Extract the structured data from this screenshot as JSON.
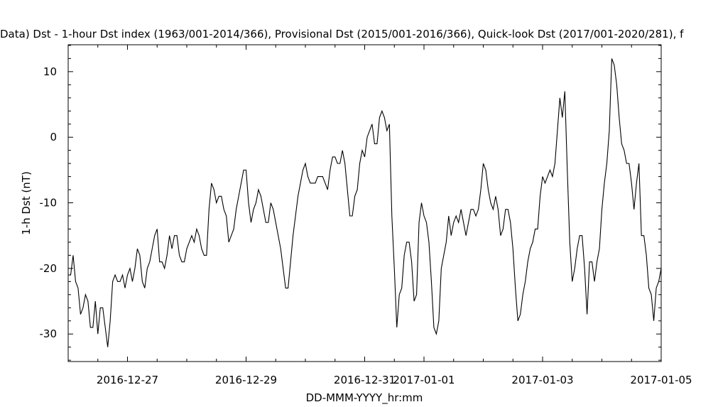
{
  "chart_data": {
    "type": "line",
    "title": "Data)  Dst - 1-hour Dst index (1963/001-2014/366), Provisional Dst (2015/001-2016/366), Quick-look Dst (2017/001-2020/281), f",
    "xlabel": "DD-MMM-YYYY_hr:mm",
    "ylabel": "1-h Dst (nT)",
    "x_range": [
      "2016-12-26",
      "2017-01-05"
    ],
    "x_ticks": [
      {
        "date": "2016-12-27",
        "label": "2016-12-27"
      },
      {
        "date": "2016-12-29",
        "label": "2016-12-29"
      },
      {
        "date": "2016-12-31",
        "label": "2016-12-31"
      },
      {
        "date": "2017-01-01",
        "label": "2017-01-01"
      },
      {
        "date": "2017-01-03",
        "label": "2017-01-03"
      },
      {
        "date": "2017-01-05",
        "label": "2017-01-05"
      }
    ],
    "y_ticks": [
      {
        "value": 10,
        "label": "10"
      },
      {
        "value": 0,
        "label": "0"
      },
      {
        "value": -10,
        "label": "-10"
      },
      {
        "value": -20,
        "label": "-20"
      },
      {
        "value": -30,
        "label": "-30"
      }
    ],
    "ylim": [
      -34.2,
      14.1
    ],
    "grid": false,
    "legend": "none",
    "line_color": "#000000",
    "series": [
      {
        "x": [
          "2016-12-26T00:00",
          "2016-12-26T01:00",
          "2016-12-26T02:00",
          "2016-12-26T03:00",
          "2016-12-26T04:00",
          "2016-12-26T05:00",
          "2016-12-26T06:00",
          "2016-12-26T07:00",
          "2016-12-26T08:00",
          "2016-12-26T09:00",
          "2016-12-26T10:00",
          "2016-12-26T11:00",
          "2016-12-26T12:00",
          "2016-12-26T13:00",
          "2016-12-26T14:00",
          "2016-12-26T15:00",
          "2016-12-26T16:00",
          "2016-12-26T17:00",
          "2016-12-26T18:00",
          "2016-12-26T19:00",
          "2016-12-26T20:00",
          "2016-12-26T21:00",
          "2016-12-26T22:00",
          "2016-12-26T23:00",
          "2016-12-27T00:00",
          "2016-12-27T01:00",
          "2016-12-27T02:00",
          "2016-12-27T03:00",
          "2016-12-27T04:00",
          "2016-12-27T05:00",
          "2016-12-27T06:00",
          "2016-12-27T07:00",
          "2016-12-27T08:00",
          "2016-12-27T09:00",
          "2016-12-27T10:00",
          "2016-12-27T11:00",
          "2016-12-27T12:00",
          "2016-12-27T13:00",
          "2016-12-27T14:00",
          "2016-12-27T15:00",
          "2016-12-27T16:00",
          "2016-12-27T17:00",
          "2016-12-27T18:00",
          "2016-12-27T19:00",
          "2016-12-27T20:00",
          "2016-12-27T21:00",
          "2016-12-27T22:00",
          "2016-12-27T23:00",
          "2016-12-28T00:00",
          "2016-12-28T01:00",
          "2016-12-28T02:00",
          "2016-12-28T03:00",
          "2016-12-28T04:00",
          "2016-12-28T05:00",
          "2016-12-28T06:00",
          "2016-12-28T07:00",
          "2016-12-28T08:00",
          "2016-12-28T09:00",
          "2016-12-28T10:00",
          "2016-12-28T11:00",
          "2016-12-28T12:00",
          "2016-12-28T13:00",
          "2016-12-28T14:00",
          "2016-12-28T15:00",
          "2016-12-28T16:00",
          "2016-12-28T17:00",
          "2016-12-28T18:00",
          "2016-12-28T19:00",
          "2016-12-28T20:00",
          "2016-12-28T21:00",
          "2016-12-28T22:00",
          "2016-12-28T23:00",
          "2016-12-29T00:00",
          "2016-12-29T01:00",
          "2016-12-29T02:00",
          "2016-12-29T03:00",
          "2016-12-29T04:00",
          "2016-12-29T05:00",
          "2016-12-29T06:00",
          "2016-12-29T07:00",
          "2016-12-29T08:00",
          "2016-12-29T09:00",
          "2016-12-29T10:00",
          "2016-12-29T11:00",
          "2016-12-29T12:00",
          "2016-12-29T13:00",
          "2016-12-29T14:00",
          "2016-12-29T15:00",
          "2016-12-29T16:00",
          "2016-12-29T17:00",
          "2016-12-29T18:00",
          "2016-12-29T19:00",
          "2016-12-29T20:00",
          "2016-12-29T21:00",
          "2016-12-29T22:00",
          "2016-12-29T23:00",
          "2016-12-30T00:00",
          "2016-12-30T01:00",
          "2016-12-30T02:00",
          "2016-12-30T03:00",
          "2016-12-30T04:00",
          "2016-12-30T05:00",
          "2016-12-30T06:00",
          "2016-12-30T07:00",
          "2016-12-30T08:00",
          "2016-12-30T09:00",
          "2016-12-30T10:00",
          "2016-12-30T11:00",
          "2016-12-30T12:00",
          "2016-12-30T13:00",
          "2016-12-30T14:00",
          "2016-12-30T15:00",
          "2016-12-30T16:00",
          "2016-12-30T17:00",
          "2016-12-30T18:00",
          "2016-12-30T19:00",
          "2016-12-30T20:00",
          "2016-12-30T21:00",
          "2016-12-30T22:00",
          "2016-12-30T23:00",
          "2016-12-31T00:00",
          "2016-12-31T01:00",
          "2016-12-31T02:00",
          "2016-12-31T03:00",
          "2016-12-31T04:00",
          "2016-12-31T05:00",
          "2016-12-31T06:00",
          "2016-12-31T07:00",
          "2016-12-31T08:00",
          "2016-12-31T09:00",
          "2016-12-31T10:00",
          "2016-12-31T11:00",
          "2016-12-31T12:00",
          "2016-12-31T13:00",
          "2016-12-31T14:00",
          "2016-12-31T15:00",
          "2016-12-31T16:00",
          "2016-12-31T17:00",
          "2016-12-31T18:00",
          "2016-12-31T19:00",
          "2016-12-31T20:00",
          "2016-12-31T21:00",
          "2016-12-31T22:00",
          "2016-12-31T23:00",
          "2017-01-01T00:00",
          "2017-01-01T01:00",
          "2017-01-01T02:00",
          "2017-01-01T03:00",
          "2017-01-01T04:00",
          "2017-01-01T05:00",
          "2017-01-01T06:00",
          "2017-01-01T07:00",
          "2017-01-01T08:00",
          "2017-01-01T09:00",
          "2017-01-01T10:00",
          "2017-01-01T11:00",
          "2017-01-01T12:00",
          "2017-01-01T13:00",
          "2017-01-01T14:00",
          "2017-01-01T15:00",
          "2017-01-01T16:00",
          "2017-01-01T17:00",
          "2017-01-01T18:00",
          "2017-01-01T19:00",
          "2017-01-01T20:00",
          "2017-01-01T21:00",
          "2017-01-01T22:00",
          "2017-01-01T23:00",
          "2017-01-02T00:00",
          "2017-01-02T01:00",
          "2017-01-02T02:00",
          "2017-01-02T03:00",
          "2017-01-02T04:00",
          "2017-01-02T05:00",
          "2017-01-02T06:00",
          "2017-01-02T07:00",
          "2017-01-02T08:00",
          "2017-01-02T09:00",
          "2017-01-02T10:00",
          "2017-01-02T11:00",
          "2017-01-02T12:00",
          "2017-01-02T13:00",
          "2017-01-02T14:00",
          "2017-01-02T15:00",
          "2017-01-02T16:00",
          "2017-01-02T17:00",
          "2017-01-02T18:00",
          "2017-01-02T19:00",
          "2017-01-02T20:00",
          "2017-01-02T21:00",
          "2017-01-02T22:00",
          "2017-01-02T23:00",
          "2017-01-03T00:00",
          "2017-01-03T01:00",
          "2017-01-03T02:00",
          "2017-01-03T03:00",
          "2017-01-03T04:00",
          "2017-01-03T05:00",
          "2017-01-03T06:00",
          "2017-01-03T07:00",
          "2017-01-03T08:00",
          "2017-01-03T09:00",
          "2017-01-03T10:00",
          "2017-01-03T11:00",
          "2017-01-03T12:00",
          "2017-01-03T13:00",
          "2017-01-03T14:00",
          "2017-01-03T15:00",
          "2017-01-03T16:00",
          "2017-01-03T17:00",
          "2017-01-03T18:00",
          "2017-01-03T19:00",
          "2017-01-03T20:00",
          "2017-01-03T21:00",
          "2017-01-03T22:00",
          "2017-01-03T23:00",
          "2017-01-04T00:00",
          "2017-01-04T01:00",
          "2017-01-04T02:00",
          "2017-01-04T03:00",
          "2017-01-04T04:00",
          "2017-01-04T05:00",
          "2017-01-04T06:00",
          "2017-01-04T07:00",
          "2017-01-04T08:00",
          "2017-01-04T09:00",
          "2017-01-04T10:00",
          "2017-01-04T11:00",
          "2017-01-04T12:00",
          "2017-01-04T13:00",
          "2017-01-04T14:00",
          "2017-01-04T15:00",
          "2017-01-04T16:00",
          "2017-01-04T17:00",
          "2017-01-04T18:00",
          "2017-01-04T19:00",
          "2017-01-04T20:00",
          "2017-01-04T21:00",
          "2017-01-04T22:00",
          "2017-01-04T23:00",
          "2017-01-05T00:00"
        ],
        "values": [
          -21,
          -21,
          -18,
          -22,
          -23,
          -27,
          -26,
          -24,
          -25,
          -29,
          -29,
          -25,
          -30,
          -26,
          -26,
          -29,
          -32,
          -28,
          -22,
          -21,
          -22,
          -22,
          -21,
          -23,
          -21,
          -20,
          -22,
          -20,
          -17,
          -18,
          -22,
          -23,
          -20,
          -19,
          -17,
          -15,
          -14,
          -19,
          -19,
          -20,
          -18,
          -15,
          -17,
          -15,
          -15,
          -18,
          -19,
          -19,
          -17,
          -16,
          -15,
          -16,
          -14,
          -15,
          -17,
          -18,
          -18,
          -11,
          -7,
          -8,
          -10,
          -9,
          -9,
          -11,
          -12,
          -16,
          -15,
          -14,
          -11,
          -9,
          -7,
          -5,
          -5,
          -10,
          -13,
          -11,
          -10,
          -8,
          -9,
          -11,
          -13,
          -13,
          -10,
          -11,
          -13,
          -15,
          -17,
          -20,
          -23,
          -23,
          -19,
          -15,
          -12,
          -9,
          -7,
          -5,
          -4,
          -6,
          -7,
          -7,
          -7,
          -6,
          -6,
          -6,
          -7,
          -8,
          -5,
          -3,
          -3,
          -4,
          -4,
          -2,
          -4,
          -8,
          -12,
          -12,
          -9,
          -8,
          -4,
          -2,
          -3,
          0,
          1,
          2,
          -1,
          -1,
          3,
          4,
          3,
          1,
          2,
          -12,
          -20,
          -29,
          -24,
          -23,
          -18,
          -16,
          -16,
          -19,
          -25,
          -24,
          -13,
          -10,
          -12,
          -13,
          -16,
          -22,
          -29,
          -30,
          -28,
          -20,
          -18,
          -16,
          -12,
          -15,
          -13,
          -12,
          -13,
          -11,
          -13,
          -15,
          -13,
          -11,
          -11,
          -12,
          -11,
          -8,
          -4,
          -5,
          -8,
          -10,
          -11,
          -9,
          -11,
          -15,
          -14,
          -11,
          -11,
          -13,
          -17,
          -23,
          -28,
          -27,
          -24,
          -22,
          -19,
          -17,
          -16,
          -14,
          -14,
          -9,
          -6,
          -7,
          -6,
          -5,
          -6,
          -4,
          1,
          6,
          3,
          7,
          -5,
          -16,
          -22,
          -20,
          -17,
          -15,
          -15,
          -20,
          -27,
          -19,
          -19,
          -22,
          -19,
          -17,
          -11,
          -7,
          -4,
          1,
          12,
          11,
          8,
          3,
          -1,
          -2,
          -4,
          -4,
          -7,
          -11,
          -7,
          -4,
          -15,
          -15,
          -18,
          -23,
          -24,
          -28,
          -23,
          -22,
          -20
        ]
      }
    ]
  }
}
